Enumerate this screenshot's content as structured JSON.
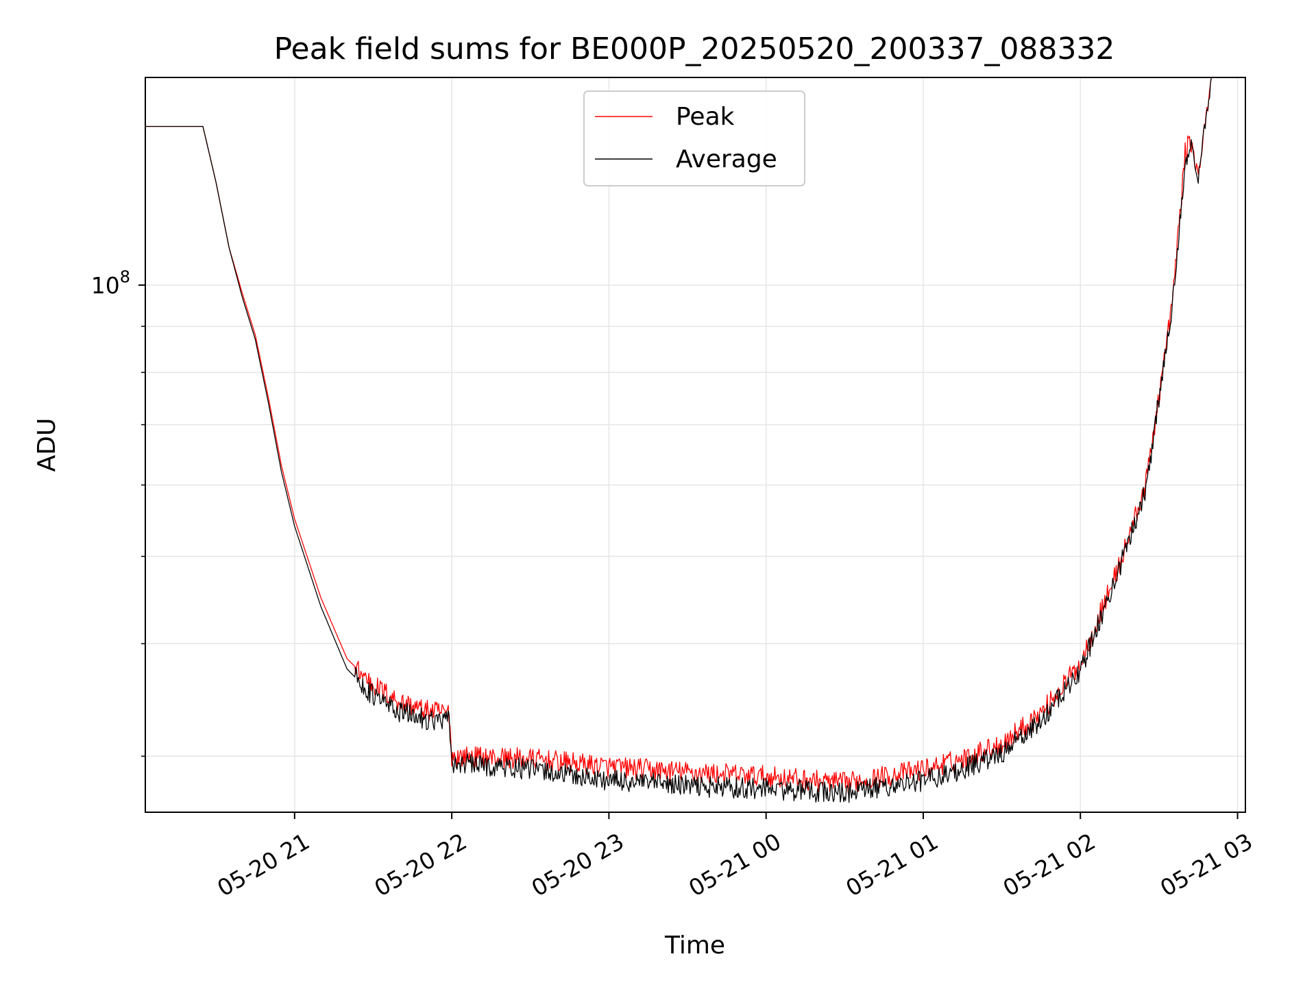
{
  "chart_data": {
    "type": "line",
    "title": "Peak field sums for BE000P_20250520_200337_088332",
    "xlabel": "Time",
    "ylabel": "ADU",
    "x_axis": {
      "kind": "datetime",
      "range": [
        "2025-05-20 20:03",
        "2025-05-21 03:03"
      ],
      "tick_labels": [
        "05-20 21",
        "05-20 22",
        "05-20 23",
        "05-21 00",
        "05-21 01",
        "05-21 02",
        "05-21 03"
      ],
      "tick_rotation_deg": 30
    },
    "y_axis": {
      "scale": "log",
      "range": [
        26000000,
        170000000
      ],
      "tick_labels": [
        {
          "value": 100000000,
          "text": "10",
          "exponent": "8"
        }
      ]
    },
    "grid": true,
    "legend": {
      "placement": "upper center",
      "entries": [
        "Peak",
        "Average"
      ]
    },
    "series": [
      {
        "name": "Peak",
        "color": "#ff0000",
        "x": [
          "2025-05-20 20:03",
          "2025-05-20 20:20",
          "2025-05-20 20:25",
          "2025-05-20 20:30",
          "2025-05-20 20:35",
          "2025-05-20 20:40",
          "2025-05-20 20:45",
          "2025-05-20 20:50",
          "2025-05-20 20:55",
          "2025-05-20 21:00",
          "2025-05-20 21:10",
          "2025-05-20 21:20",
          "2025-05-20 21:30",
          "2025-05-20 21:40",
          "2025-05-20 21:50",
          "2025-05-20 21:59",
          "2025-05-20 22:00",
          "2025-05-20 22:30",
          "2025-05-20 23:00",
          "2025-05-20 23:30",
          "2025-05-21 00:00",
          "2025-05-21 00:30",
          "2025-05-21 01:00",
          "2025-05-21 01:15",
          "2025-05-21 01:30",
          "2025-05-21 01:45",
          "2025-05-21 02:00",
          "2025-05-21 02:15",
          "2025-05-21 02:25",
          "2025-05-21 02:35",
          "2025-05-21 02:40",
          "2025-05-21 02:42",
          "2025-05-21 02:45",
          "2025-05-21 02:50"
        ],
        "y": [
          150000000,
          150000000,
          150000000,
          130000000,
          110000000,
          98000000,
          88000000,
          75000000,
          63000000,
          55000000,
          45000000,
          38500000,
          36000000,
          34500000,
          33700000,
          33500000,
          30000000,
          29800000,
          29200000,
          28800000,
          28500000,
          28000000,
          29000000,
          29800000,
          31000000,
          33500000,
          38000000,
          49000000,
          60000000,
          95000000,
          140000000,
          145000000,
          132000000,
          170000000
        ]
      },
      {
        "name": "Average",
        "color": "#000000",
        "x": [
          "2025-05-20 20:03",
          "2025-05-20 20:20",
          "2025-05-20 20:25",
          "2025-05-20 20:30",
          "2025-05-20 20:35",
          "2025-05-20 20:40",
          "2025-05-20 20:45",
          "2025-05-20 20:50",
          "2025-05-20 20:55",
          "2025-05-20 21:00",
          "2025-05-20 21:10",
          "2025-05-20 21:20",
          "2025-05-20 21:30",
          "2025-05-20 21:40",
          "2025-05-20 21:50",
          "2025-05-20 21:59",
          "2025-05-20 22:00",
          "2025-05-20 22:30",
          "2025-05-20 23:00",
          "2025-05-20 23:30",
          "2025-05-21 00:00",
          "2025-05-21 00:30",
          "2025-05-21 01:00",
          "2025-05-21 01:15",
          "2025-05-21 01:30",
          "2025-05-21 01:45",
          "2025-05-21 02:00",
          "2025-05-21 02:15",
          "2025-05-21 02:25",
          "2025-05-21 02:35",
          "2025-05-21 02:40",
          "2025-05-21 02:42",
          "2025-05-21 02:45",
          "2025-05-21 02:50"
        ],
        "y": [
          150000000,
          150000000,
          150000000,
          130000000,
          110000000,
          97000000,
          87000000,
          74000000,
          62000000,
          54000000,
          44000000,
          37500000,
          35000000,
          33600000,
          33000000,
          32800000,
          29500000,
          29000000,
          28200000,
          27800000,
          27600000,
          27300000,
          28200000,
          29000000,
          30200000,
          32800000,
          37300000,
          48500000,
          59500000,
          94000000,
          138000000,
          143000000,
          131000000,
          170000000
        ]
      }
    ]
  }
}
